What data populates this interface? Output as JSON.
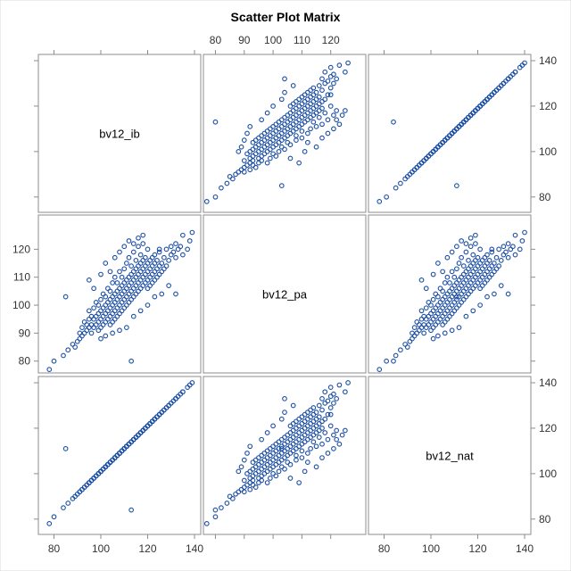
{
  "chart_data": {
    "type": "scatter",
    "title": "Scatter Plot Matrix",
    "variables": [
      "bv12_ib",
      "bv12_pa",
      "bv12_nat"
    ],
    "axis_ranges": {
      "bv12_ib": [
        76,
        140
      ],
      "bv12_pa": [
        78,
        130
      ],
      "bv12_nat": [
        76,
        140
      ]
    },
    "ticks": {
      "bv12_ib": [
        80,
        100,
        120,
        140
      ],
      "bv12_pa": [
        80,
        90,
        100,
        110,
        120
      ],
      "bv12_nat": [
        80,
        100,
        120,
        140
      ]
    },
    "marker": {
      "shape": "open-circle",
      "color": "#1c4fa3"
    },
    "grid": false,
    "points": [
      [
        78,
        77,
        78
      ],
      [
        80,
        80,
        81
      ],
      [
        84,
        82,
        85
      ],
      [
        86,
        84,
        87
      ],
      [
        88,
        86,
        89
      ],
      [
        89,
        85,
        90
      ],
      [
        90,
        87,
        91
      ],
      [
        91,
        88,
        92
      ],
      [
        91,
        90,
        92
      ],
      [
        92,
        89,
        93
      ],
      [
        92,
        92,
        93
      ],
      [
        93,
        90,
        94
      ],
      [
        93,
        94,
        94
      ],
      [
        94,
        91,
        95
      ],
      [
        94,
        93,
        95
      ],
      [
        95,
        92,
        96
      ],
      [
        95,
        95,
        96
      ],
      [
        95,
        98,
        96
      ],
      [
        96,
        90,
        97
      ],
      [
        96,
        93,
        97
      ],
      [
        96,
        96,
        97
      ],
      [
        97,
        92,
        98
      ],
      [
        97,
        95,
        98
      ],
      [
        97,
        99,
        98
      ],
      [
        98,
        93,
        99
      ],
      [
        98,
        96,
        99
      ],
      [
        98,
        101,
        99
      ],
      [
        99,
        91,
        100
      ],
      [
        99,
        94,
        100
      ],
      [
        99,
        97,
        100
      ],
      [
        99,
        100,
        100
      ],
      [
        100,
        92,
        101
      ],
      [
        100,
        95,
        101
      ],
      [
        100,
        98,
        101
      ],
      [
        100,
        102,
        101
      ],
      [
        101,
        93,
        102
      ],
      [
        101,
        96,
        102
      ],
      [
        101,
        99,
        102
      ],
      [
        101,
        104,
        102
      ],
      [
        102,
        94,
        103
      ],
      [
        102,
        97,
        103
      ],
      [
        102,
        100,
        103
      ],
      [
        102,
        103,
        103
      ],
      [
        103,
        95,
        104
      ],
      [
        103,
        98,
        104
      ],
      [
        103,
        101,
        104
      ],
      [
        103,
        106,
        104
      ],
      [
        104,
        93,
        105
      ],
      [
        104,
        96,
        105
      ],
      [
        104,
        99,
        105
      ],
      [
        104,
        102,
        105
      ],
      [
        104,
        105,
        105
      ],
      [
        105,
        94,
        106
      ],
      [
        105,
        97,
        106
      ],
      [
        105,
        100,
        106
      ],
      [
        105,
        103,
        106
      ],
      [
        105,
        108,
        106
      ],
      [
        106,
        95,
        107
      ],
      [
        106,
        98,
        107
      ],
      [
        106,
        101,
        107
      ],
      [
        106,
        104,
        107
      ],
      [
        106,
        110,
        107
      ],
      [
        107,
        96,
        108
      ],
      [
        107,
        99,
        108
      ],
      [
        107,
        102,
        108
      ],
      [
        107,
        105,
        108
      ],
      [
        107,
        108,
        108
      ],
      [
        108,
        97,
        109
      ],
      [
        108,
        100,
        109
      ],
      [
        108,
        103,
        109
      ],
      [
        108,
        106,
        109
      ],
      [
        108,
        112,
        109
      ],
      [
        109,
        98,
        110
      ],
      [
        109,
        101,
        110
      ],
      [
        109,
        104,
        110
      ],
      [
        109,
        107,
        110
      ],
      [
        109,
        110,
        110
      ],
      [
        110,
        99,
        111
      ],
      [
        110,
        102,
        111
      ],
      [
        110,
        105,
        111
      ],
      [
        110,
        108,
        111
      ],
      [
        110,
        113,
        111
      ],
      [
        111,
        100,
        112
      ],
      [
        111,
        103,
        112
      ],
      [
        111,
        106,
        112
      ],
      [
        111,
        109,
        112
      ],
      [
        111,
        115,
        112
      ],
      [
        112,
        101,
        113
      ],
      [
        112,
        104,
        113
      ],
      [
        112,
        107,
        113
      ],
      [
        112,
        110,
        113
      ],
      [
        112,
        117,
        113
      ],
      [
        113,
        102,
        114
      ],
      [
        113,
        105,
        114
      ],
      [
        113,
        108,
        114
      ],
      [
        113,
        111,
        114
      ],
      [
        113,
        114,
        114
      ],
      [
        114,
        103,
        115
      ],
      [
        114,
        106,
        115
      ],
      [
        114,
        109,
        115
      ],
      [
        114,
        112,
        115
      ],
      [
        114,
        119,
        115
      ],
      [
        115,
        104,
        116
      ],
      [
        115,
        107,
        116
      ],
      [
        115,
        110,
        116
      ],
      [
        115,
        113,
        116
      ],
      [
        115,
        116,
        116
      ],
      [
        116,
        105,
        117
      ],
      [
        116,
        108,
        117
      ],
      [
        116,
        111,
        117
      ],
      [
        116,
        114,
        117
      ],
      [
        116,
        121,
        117
      ],
      [
        117,
        106,
        118
      ],
      [
        117,
        109,
        118
      ],
      [
        117,
        112,
        118
      ],
      [
        117,
        115,
        118
      ],
      [
        117,
        118,
        118
      ],
      [
        118,
        107,
        119
      ],
      [
        118,
        110,
        119
      ],
      [
        118,
        113,
        119
      ],
      [
        118,
        116,
        119
      ],
      [
        118,
        122,
        119
      ],
      [
        119,
        108,
        120
      ],
      [
        119,
        111,
        120
      ],
      [
        119,
        114,
        120
      ],
      [
        119,
        117,
        120
      ],
      [
        120,
        106,
        121
      ],
      [
        120,
        109,
        121
      ],
      [
        120,
        112,
        121
      ],
      [
        120,
        115,
        121
      ],
      [
        120,
        120,
        121
      ],
      [
        121,
        107,
        122
      ],
      [
        121,
        110,
        122
      ],
      [
        121,
        113,
        122
      ],
      [
        121,
        116,
        122
      ],
      [
        122,
        108,
        123
      ],
      [
        122,
        111,
        123
      ],
      [
        122,
        114,
        123
      ],
      [
        122,
        117,
        123
      ],
      [
        123,
        109,
        124
      ],
      [
        123,
        112,
        124
      ],
      [
        123,
        115,
        124
      ],
      [
        123,
        118,
        124
      ],
      [
        124,
        110,
        125
      ],
      [
        124,
        113,
        125
      ],
      [
        124,
        116,
        125
      ],
      [
        125,
        111,
        126
      ],
      [
        125,
        114,
        126
      ],
      [
        125,
        119,
        126
      ],
      [
        126,
        112,
        127
      ],
      [
        126,
        115,
        127
      ],
      [
        127,
        113,
        128
      ],
      [
        127,
        117,
        128
      ],
      [
        128,
        114,
        129
      ],
      [
        128,
        120,
        129
      ],
      [
        129,
        116,
        130
      ],
      [
        130,
        118,
        131
      ],
      [
        130,
        121,
        131
      ],
      [
        131,
        119,
        132
      ],
      [
        132,
        117,
        133
      ],
      [
        132,
        122,
        133
      ],
      [
        133,
        120,
        134
      ],
      [
        134,
        121,
        135
      ],
      [
        135,
        125,
        136
      ],
      [
        135,
        118,
        136
      ],
      [
        137,
        120,
        138
      ],
      [
        138,
        123,
        139
      ],
      [
        139,
        126,
        140
      ],
      [
        95,
        109,
        96
      ],
      [
        97,
        106,
        98
      ],
      [
        100,
        111,
        101
      ],
      [
        102,
        115,
        103
      ],
      [
        104,
        112,
        105
      ],
      [
        106,
        117,
        107
      ],
      [
        108,
        119,
        109
      ],
      [
        110,
        121,
        111
      ],
      [
        112,
        123,
        113
      ],
      [
        114,
        122,
        115
      ],
      [
        116,
        124,
        117
      ],
      [
        118,
        125,
        119
      ],
      [
        100,
        88,
        101
      ],
      [
        102,
        89,
        103
      ],
      [
        105,
        90,
        106
      ],
      [
        108,
        91,
        109
      ],
      [
        111,
        92,
        112
      ],
      [
        114,
        96,
        115
      ],
      [
        117,
        98,
        118
      ],
      [
        120,
        100,
        121
      ],
      [
        123,
        103,
        124
      ],
      [
        126,
        104,
        127
      ],
      [
        129,
        107,
        130
      ],
      [
        132,
        104,
        133
      ],
      [
        113,
        80,
        84
      ],
      [
        85,
        103,
        111
      ],
      [
        125,
        120,
        126
      ]
    ]
  }
}
